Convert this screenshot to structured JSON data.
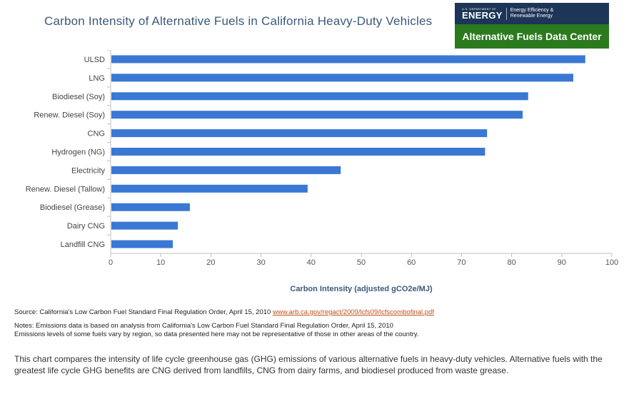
{
  "header": {
    "title": "Carbon Intensity of Alternative Fuels in California Heavy-Duty Vehicles"
  },
  "logo": {
    "doe_small": "U.S. DEPARTMENT OF",
    "doe_big": "ENERGY",
    "eere": "Energy Efficiency &\nRenewable Energy",
    "afdc": "Alternative Fuels Data Center"
  },
  "colors": {
    "bar": "#3a78d4",
    "title": "#3a5a7a",
    "logo_top": "#1d3557",
    "logo_bottom": "#2c7a1e",
    "link": "#c0501a"
  },
  "chart_data": {
    "type": "bar",
    "orientation": "horizontal",
    "categories": [
      "ULSD",
      "LNG",
      "Biodiesel (Soy)",
      "Renew. Diesel (Soy)",
      "CNG",
      "Hydrogen (NG)",
      "Electricity",
      "Renew. Diesel (Tallow)",
      "Biodiesel (Grease)",
      "Dairy CNG",
      "Landfill CNG"
    ],
    "values": [
      94.7,
      92.3,
      83.3,
      82.2,
      75.1,
      74.7,
      45.9,
      39.3,
      15.8,
      13.4,
      12.4
    ],
    "xlabel": "Carbon Intensity (adjusted gCO2e/MJ)",
    "xlim": [
      0,
      100
    ],
    "xticks": [
      0,
      10,
      20,
      30,
      40,
      50,
      60,
      70,
      80,
      90,
      100
    ],
    "grid": false
  },
  "footer": {
    "source_text": "Source: California's Low Carbon Fuel Standard Final Regulation Order, April 15, 2010 ",
    "source_link": "www.arb.ca.gov/regact/2009/lcfs09/lcfscombofinal.pdf",
    "note1": "Notes: Emissions data is based on analysis from California's Low Carbon Fuel Standard Final Regulation Order, April 15, 2010",
    "note2": "Emissions levels of some fuels vary by region, so data presented here may not be representative of those in other areas of the country.",
    "description": "This chart compares the intensity of life cycle greenhouse gas (GHG) emissions of various alternative fuels in heavy-duty vehicles. Alternative fuels with the greatest life cycle GHG benefits are CNG derived from landfills, CNG from dairy farms, and biodiesel produced from waste grease."
  }
}
